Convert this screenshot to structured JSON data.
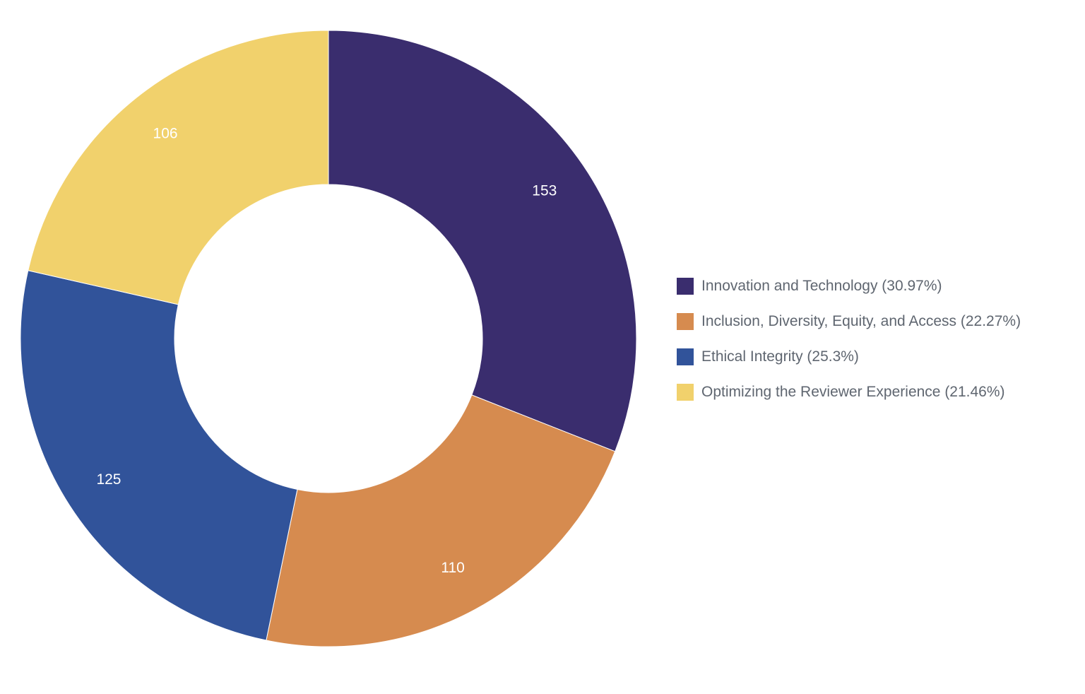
{
  "chart_data": {
    "type": "pie",
    "donut": true,
    "categories": [
      "Innovation and Technology",
      "Inclusion, Diversity, Equity, and Access",
      "Ethical Integrity",
      "Optimizing the Reviewer Experience"
    ],
    "values": [
      153,
      110,
      125,
      106
    ],
    "data_labels": [
      "153",
      "110",
      "125",
      "106"
    ],
    "colors": [
      "#3a2d6e",
      "#d68b4f",
      "#31539a",
      "#f1d16c"
    ],
    "legend_position": "right",
    "legend": [
      {
        "label": "Innovation and Technology (30.97%)",
        "color": "#3a2d6e"
      },
      {
        "label": "Inclusion, Diversity, Equity, and Access (22.27%)",
        "color": "#d68b4f"
      },
      {
        "label": "Ethical Integrity (25.3%)",
        "color": "#31539a"
      },
      {
        "label": "Optimizing the Reviewer Experience (21.46%)",
        "color": "#f1d16c"
      }
    ],
    "title": "",
    "start_angle": "12 o'clock",
    "direction": "clockwise"
  }
}
